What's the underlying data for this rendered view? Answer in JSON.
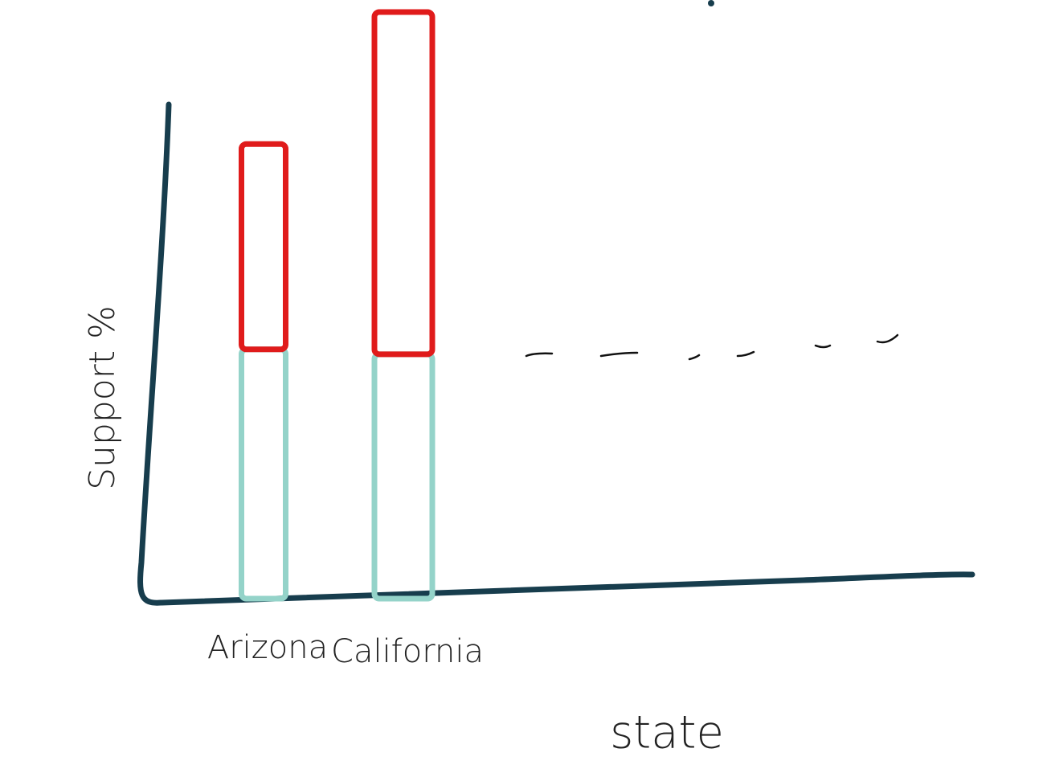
{
  "chart_data": {
    "type": "stacked-bar",
    "categories": [
      "Arizona",
      "California"
    ],
    "series": [
      {
        "color": "#94d3c9",
        "values": [
          51,
          50
        ]
      },
      {
        "color": "#e01b1b",
        "values": [
          42,
          70
        ]
      }
    ],
    "ylim": [
      0,
      120
    ],
    "x_label": "state",
    "y_label": "Support %"
  }
}
